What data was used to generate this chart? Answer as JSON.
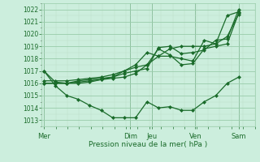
{
  "title": "",
  "xlabel": "Pression niveau de la mer( hPa )",
  "ylabel": "",
  "bg_color": "#cceedd",
  "grid_major_color": "#99ccaa",
  "grid_minor_color": "#bbddc8",
  "line_color": "#1a6b2a",
  "marker_color": "#1a6b2a",
  "ylim": [
    1012.5,
    1022.5
  ],
  "yticks": [
    1013,
    1014,
    1015,
    1016,
    1017,
    1018,
    1019,
    1020,
    1021,
    1022
  ],
  "day_labels": [
    "Mer",
    "Dim",
    "Jeu",
    "Ven",
    "Sam"
  ],
  "day_positions": [
    0.0,
    3.69,
    4.62,
    6.46,
    8.31
  ],
  "series": [
    [
      1017.0,
      1016.1,
      1016.0,
      1016.0,
      1016.1,
      1016.3,
      1016.5,
      1017.0,
      1017.5,
      1018.5,
      1018.2,
      1018.8,
      1019.0,
      1019.0,
      1019.0,
      1019.2,
      1021.5,
      1021.8
    ],
    [
      1017.0,
      1015.8,
      1015.0,
      1014.7,
      1014.2,
      1013.8,
      1013.2,
      1013.2,
      1013.2,
      1014.5,
      1014.0,
      1014.1,
      1013.8,
      1013.8,
      1014.5,
      1015.0,
      1016.0,
      1016.5
    ],
    [
      1016.0,
      1016.0,
      1016.0,
      1016.1,
      1016.2,
      1016.3,
      1016.4,
      1016.5,
      1016.8,
      1017.5,
      1018.8,
      1018.3,
      1017.5,
      1017.6,
      1018.8,
      1019.0,
      1019.2,
      1021.7
    ],
    [
      1016.0,
      1016.0,
      1016.0,
      1016.2,
      1016.3,
      1016.4,
      1016.5,
      1016.8,
      1017.0,
      1017.2,
      1018.9,
      1019.0,
      1018.4,
      1018.5,
      1018.7,
      1019.5,
      1019.6,
      1022.0
    ],
    [
      1016.2,
      1016.2,
      1016.2,
      1016.3,
      1016.4,
      1016.5,
      1016.7,
      1017.0,
      1017.3,
      1017.5,
      1018.2,
      1018.2,
      1018.0,
      1017.8,
      1019.5,
      1019.2,
      1019.8,
      1021.6
    ]
  ],
  "num_points": 18,
  "xlim": [
    -0.1,
    9.0
  ]
}
